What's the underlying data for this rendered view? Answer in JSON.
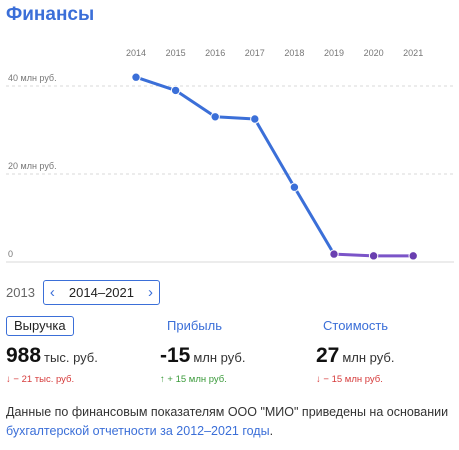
{
  "title": "Финансы",
  "chart_data": {
    "type": "line",
    "x": [
      "2014",
      "2015",
      "2016",
      "2017",
      "2018",
      "2019",
      "2020",
      "2021"
    ],
    "y_tick_labels": [
      "40 млн руб.",
      "20 млн руб.",
      "0"
    ],
    "y_ticks": [
      40,
      20,
      0
    ],
    "ylim": [
      0,
      40
    ],
    "series": [
      {
        "values": [
          42,
          39,
          33,
          32.5,
          17,
          1.8,
          1.4,
          1.4
        ]
      }
    ],
    "grid": true,
    "colors": {
      "line": "#3b6fd8",
      "line_tail": "#7b54c8",
      "marker": "#3b6fd8",
      "marker_tail": "#6a3fb0"
    }
  },
  "year_nav": {
    "prev_year": "2013",
    "range": "2014–2021",
    "left_arrow": "‹",
    "right_arrow": "›"
  },
  "metrics": [
    {
      "label": "Выручка",
      "value": "988",
      "unit": "тыс. руб.",
      "change_arrow": "↓",
      "change": "− 21 тыс. руб.",
      "trend": "neg"
    },
    {
      "label": "Прибыль",
      "value": "-15",
      "unit": "млн руб.",
      "change_arrow": "↑",
      "change": "+ 15 млн руб.",
      "trend": "pos"
    },
    {
      "label": "Стоимость",
      "value": "27",
      "unit": "млн руб.",
      "change_arrow": "↓",
      "change": "− 15 млн руб.",
      "trend": "neg"
    }
  ],
  "footer": {
    "text": "Данные по финансовым показателям ООО \"МИО\" приведены на основании ",
    "link": "бухгалтерской отчетности за 2012–2021 годы",
    "end": "."
  }
}
